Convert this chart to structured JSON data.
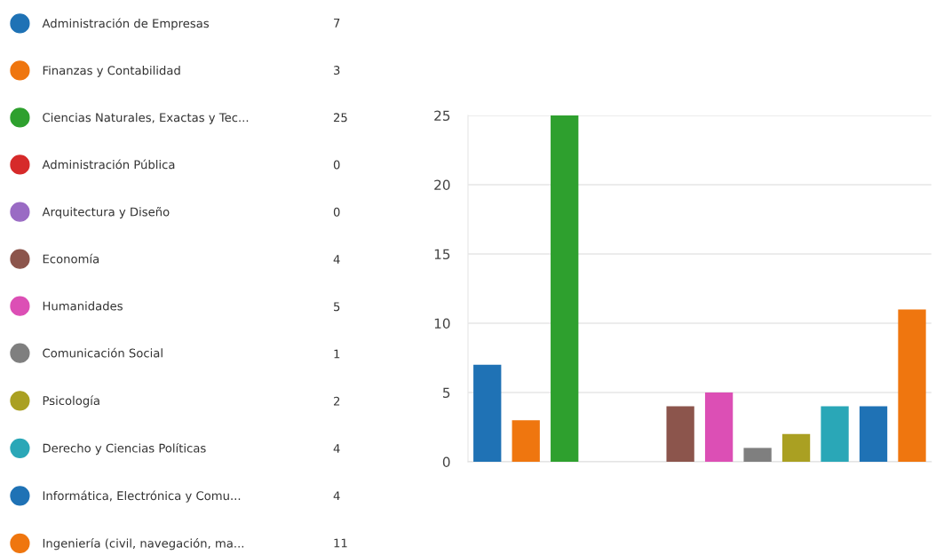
{
  "chart_data": {
    "type": "bar",
    "categories": [
      null,
      null,
      null,
      null,
      null,
      null,
      null,
      null,
      null,
      null,
      null,
      null
    ],
    "series": [
      {
        "name": "Administración de Empresas",
        "color": "#1f72b5",
        "values": [
          7,
          null,
          null,
          null,
          null,
          null,
          null,
          null,
          null,
          null,
          null,
          null
        ]
      },
      {
        "name": "Finanzas y Contabilidad",
        "color": "#ef760f",
        "values": [
          null,
          3,
          null,
          null,
          null,
          null,
          null,
          null,
          null,
          null,
          null,
          null
        ]
      },
      {
        "name": "Ciencias Naturales, Exactas y Tec...",
        "color": "#2ea02e",
        "values": [
          null,
          null,
          25,
          null,
          null,
          null,
          null,
          null,
          null,
          null,
          null,
          null
        ]
      },
      {
        "name": "Administración Pública",
        "color": "#d62a2a",
        "values": [
          null,
          null,
          null,
          0,
          null,
          null,
          null,
          null,
          null,
          null,
          null,
          null
        ]
      },
      {
        "name": "Arquitectura y Diseño",
        "color": "#9a6bc4",
        "values": [
          null,
          null,
          null,
          null,
          0,
          null,
          null,
          null,
          null,
          null,
          null,
          null
        ]
      },
      {
        "name": "Economía",
        "color": "#8c554c",
        "values": [
          null,
          null,
          null,
          null,
          null,
          4,
          null,
          null,
          null,
          null,
          null,
          null
        ]
      },
      {
        "name": "Humanidades",
        "color": "#dc4fb5",
        "values": [
          null,
          null,
          null,
          null,
          null,
          null,
          5,
          null,
          null,
          null,
          null,
          null
        ]
      },
      {
        "name": "Comunicación Social",
        "color": "#7f7f7f",
        "values": [
          null,
          null,
          null,
          null,
          null,
          null,
          null,
          1,
          null,
          null,
          null,
          null
        ]
      },
      {
        "name": "Psicología",
        "color": "#aaa022",
        "values": [
          null,
          null,
          null,
          null,
          null,
          null,
          null,
          null,
          2,
          null,
          null,
          null
        ]
      },
      {
        "name": "Derecho y Ciencias Políticas",
        "color": "#2aa7b7",
        "values": [
          null,
          null,
          null,
          null,
          null,
          null,
          null,
          null,
          null,
          4,
          null,
          null
        ]
      },
      {
        "name": "Informática, Electrónica y Comu...",
        "color": "#1f72b5",
        "values": [
          null,
          null,
          null,
          null,
          null,
          null,
          null,
          null,
          null,
          null,
          4,
          null
        ]
      },
      {
        "name": "Ingeniería (civil, navegación, ma...",
        "color": "#ef760f",
        "values": [
          null,
          null,
          null,
          null,
          null,
          null,
          null,
          null,
          null,
          null,
          null,
          11
        ]
      }
    ],
    "ylim": [
      0,
      25
    ],
    "yticks": [
      0,
      5,
      10,
      15,
      20,
      25
    ],
    "annotations": [
      "7",
      "3",
      "25",
      "0",
      "0",
      "4",
      "5",
      "1",
      "2",
      "4",
      "4",
      "11"
    ],
    "grid": "y",
    "legend": "left"
  }
}
